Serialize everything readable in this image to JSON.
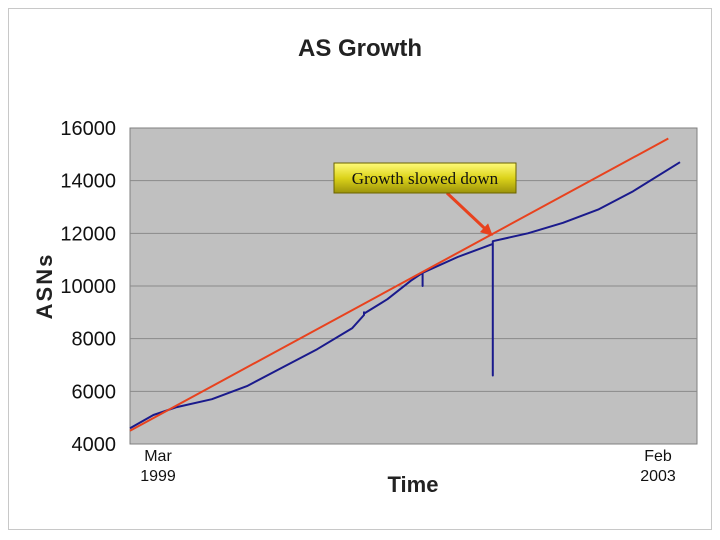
{
  "chart_data": {
    "type": "line",
    "title": "AS Growth",
    "xlabel": "Time",
    "ylabel": "ASNs",
    "ylim": [
      4000,
      16000
    ],
    "yticks": [
      "16000",
      "14000",
      "12000",
      "10000",
      "8000",
      "6000",
      "4000"
    ],
    "x_start_label": [
      "Mar",
      "1999"
    ],
    "x_end_label": [
      "Feb",
      "2003"
    ],
    "x_range": [
      "1999-03",
      "2003-02"
    ],
    "grid": true,
    "series": [
      {
        "color": "#1a1a8c",
        "points": [
          [
            "1999-03",
            4600
          ],
          [
            "1999-05",
            5100
          ],
          [
            "1999-07",
            5400
          ],
          [
            "1999-10",
            5700
          ],
          [
            "2000-01",
            6200
          ],
          [
            "2000-04",
            6900
          ],
          [
            "2000-07",
            7600
          ],
          [
            "2000-10",
            8400
          ],
          [
            "2000-11",
            8900
          ],
          [
            "2000-11",
            9000
          ],
          [
            "2000-11",
            8950
          ],
          [
            "2001-01",
            9500
          ],
          [
            "2001-03",
            10200
          ],
          [
            "2001-04",
            10500
          ],
          [
            "2001-04",
            10000
          ],
          [
            "2001-04",
            10500
          ],
          [
            "2001-07",
            11100
          ],
          [
            "2001-10",
            11600
          ],
          [
            "2001-10",
            11700
          ],
          [
            "2001-10",
            6600
          ],
          [
            "2001-10",
            11700
          ],
          [
            "2002-01",
            12000
          ],
          [
            "2002-04",
            12400
          ],
          [
            "2002-07",
            12900
          ],
          [
            "2002-10",
            13600
          ],
          [
            "2003-02",
            14700
          ]
        ]
      },
      {
        "color": "#e8421e",
        "points": [
          [
            "1999-03",
            4500
          ],
          [
            "2003-01",
            15600
          ]
        ]
      }
    ],
    "annotation": {
      "text": "Growth slowed down",
      "target": [
        "2001-10",
        11900
      ]
    }
  }
}
